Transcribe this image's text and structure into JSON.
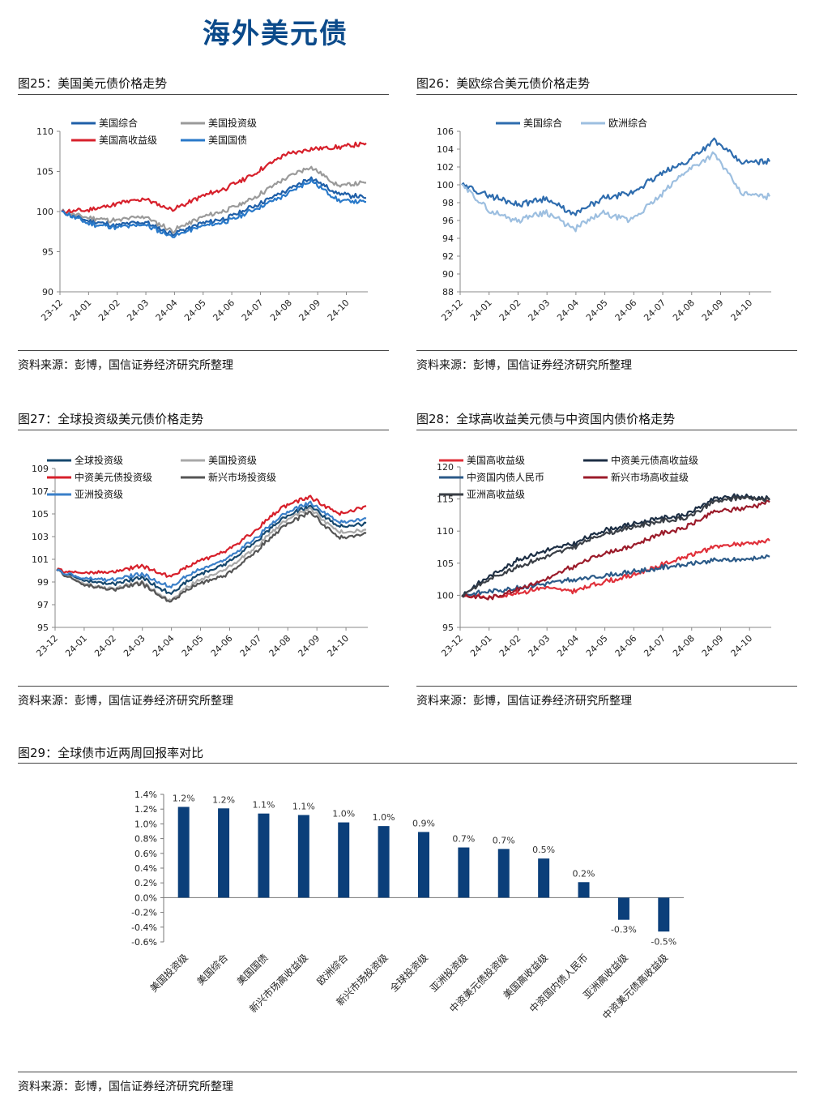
{
  "page_title": "海外美元债",
  "figures": [
    {
      "title": "图25：美国美元债价格走势",
      "source": "资料来源：彭博，国信证券经济研究所整理",
      "chart_data": {
        "type": "line",
        "ylim": [
          90,
          110
        ],
        "yticks": [
          90,
          95,
          100,
          105,
          110
        ],
        "xticks": [
          "23-12",
          "24-01",
          "24-02",
          "24-03",
          "24-04",
          "24-05",
          "24-06",
          "24-07",
          "24-08",
          "24-09",
          "24-10"
        ],
        "series": [
          {
            "name": "美国综合",
            "color": "#1f5fa8",
            "values": [
              100,
              98.8,
              98.3,
              98.7,
              97.2,
              98.5,
              99.2,
              100.8,
              102.4,
              104.2,
              102.2,
              101.7
            ]
          },
          {
            "name": "美国投资级",
            "color": "#9a9a9a",
            "values": [
              100,
              99.2,
              98.9,
              99.4,
              97.6,
              99.2,
              100.2,
              101.8,
              104.0,
              105.6,
              103.2,
              103.6
            ]
          },
          {
            "name": "美国高收益级",
            "color": "#d7202b",
            "values": [
              100,
              100.2,
              101.0,
              101.6,
              100.2,
              101.8,
              103.0,
              104.8,
              107.0,
              107.8,
              108.0,
              108.5
            ]
          },
          {
            "name": "美国国债",
            "color": "#2979c9",
            "values": [
              100,
              98.5,
              98.0,
              98.4,
              96.9,
              98.1,
              98.8,
              100.3,
              101.9,
              103.9,
              101.4,
              101.2
            ]
          }
        ]
      }
    },
    {
      "title": "图26：美欧综合美元债价格走势",
      "source": "资料来源：彭博，国信证券经济研究所整理",
      "chart_data": {
        "type": "line",
        "ylim": [
          88,
          106
        ],
        "yticks": [
          88,
          90,
          92,
          94,
          96,
          98,
          100,
          102,
          104,
          106
        ],
        "xticks": [
          "23-12",
          "24-01",
          "24-02",
          "24-03",
          "24-04",
          "24-05",
          "24-06",
          "24-07",
          "24-08",
          "24-09",
          "24-10"
        ],
        "series": [
          {
            "name": "美国综合",
            "color": "#2e6cae",
            "values": [
              100,
              98.8,
              97.8,
              98.5,
              96.6,
              98.4,
              99.0,
              101.0,
              102.5,
              105.0,
              102.5,
              102.6
            ]
          },
          {
            "name": "欧洲综合",
            "color": "#9dbfe0",
            "values": [
              100,
              97.0,
              96.0,
              97.0,
              95.0,
              96.8,
              96.0,
              98.5,
              101.5,
              103.5,
              99.0,
              98.7
            ]
          }
        ]
      }
    },
    {
      "title": "图27：全球投资级美元债价格走势",
      "source": "资料来源：彭博，国信证券经济研究所整理",
      "chart_data": {
        "type": "line",
        "ylim": [
          95,
          109
        ],
        "yticks": [
          95,
          97,
          99,
          101,
          103,
          105,
          107,
          109
        ],
        "xticks": [
          "23-12",
          "24-01",
          "24-02",
          "24-03",
          "24-04",
          "24-05",
          "24-06",
          "24-07",
          "24-08",
          "24-09",
          "24-10"
        ],
        "series": [
          {
            "name": "全球投资级",
            "color": "#16486e",
            "values": [
              100,
              99.1,
              98.8,
              99.4,
              98.0,
              99.6,
              100.6,
              102.4,
              104.6,
              105.7,
              103.9,
              104.2
            ]
          },
          {
            "name": "美国投资级",
            "color": "#a8a8a8",
            "values": [
              100,
              98.8,
              98.4,
              99.0,
              97.4,
              99.1,
              100.1,
              101.9,
              104.2,
              105.5,
              103.4,
              103.6
            ]
          },
          {
            "name": "中资美元债投资级",
            "color": "#d7202b",
            "values": [
              100,
              99.8,
              99.9,
              100.4,
              99.5,
              100.8,
              101.7,
              103.4,
              105.6,
              106.5,
              105.0,
              105.7
            ]
          },
          {
            "name": "新兴市场投资级",
            "color": "#555555",
            "values": [
              100,
              98.7,
              98.3,
              98.9,
              97.3,
              98.8,
              99.6,
              101.5,
              103.8,
              105.2,
              102.9,
              103.3
            ]
          },
          {
            "name": "亚洲投资级",
            "color": "#3a7fc8",
            "values": [
              100,
              99.3,
              99.2,
              99.7,
              98.6,
              100.0,
              101.0,
              102.7,
              104.9,
              106.0,
              104.3,
              104.6
            ]
          }
        ]
      }
    },
    {
      "title": "图28：全球高收益美元债与中资国内债价格走势",
      "source": "资料来源：彭博，国信证券经济研究所整理",
      "chart_data": {
        "type": "line",
        "ylim": [
          95,
          120
        ],
        "yticks": [
          95,
          100,
          105,
          110,
          115,
          120
        ],
        "xticks": [
          "23-12",
          "24-01",
          "24-02",
          "24-03",
          "24-04",
          "24-05",
          "24-06",
          "24-07",
          "24-08",
          "24-09",
          "24-10"
        ],
        "series": [
          {
            "name": "美国高收益级",
            "color": "#e0303a",
            "values": [
              100,
              99.6,
              100.4,
              101.2,
              100.6,
              102.0,
              103.0,
              104.5,
              106.0,
              107.5,
              108.0,
              108.5
            ]
          },
          {
            "name": "中资美元债高收益级",
            "color": "#1c2e44",
            "values": [
              100,
              103.0,
              105.5,
              107.0,
              108.0,
              110.0,
              111.0,
              112.0,
              112.5,
              115.0,
              115.5,
              115.0
            ]
          },
          {
            "name": "中资国内债人民币",
            "color": "#2b5a88",
            "values": [
              100,
              100.6,
              101.2,
              101.8,
              102.4,
              103.0,
              103.6,
              104.2,
              104.8,
              105.4,
              105.6,
              106.0
            ]
          },
          {
            "name": "新兴市场高收益级",
            "color": "#9b1b2a",
            "values": [
              100,
              99.5,
              101.0,
              102.5,
              104.5,
              106.5,
              107.5,
              109.5,
              110.5,
              113.0,
              113.5,
              114.5
            ]
          },
          {
            "name": "亚洲高收益级",
            "color": "#3a3f46",
            "values": [
              100,
              102.5,
              104.5,
              106.0,
              107.5,
              109.5,
              110.5,
              111.5,
              112.0,
              114.5,
              115.3,
              114.8
            ]
          }
        ]
      }
    },
    {
      "title": "图29：全球债市近两周回报率对比",
      "source": "资料来源：彭博，国信证券经济研究所整理",
      "chart_data": {
        "type": "bar",
        "color": "#0b3f7a",
        "ylim": [
          -0.6,
          1.4
        ],
        "yticks": [
          "-0.6%",
          "-0.4%",
          "-0.2%",
          "0.0%",
          "0.2%",
          "0.4%",
          "0.6%",
          "0.8%",
          "1.0%",
          "1.2%",
          "1.4%"
        ],
        "categories": [
          "美国投资级",
          "美国综合",
          "美国国债",
          "新兴市场高收益级",
          "欧洲综合",
          "新兴市场投资级",
          "全球投资级",
          "亚洲投资级",
          "中资美元债投资级",
          "美国高收益级",
          "中资国内债人民币",
          "亚洲高收益级",
          "中资美元债高收益级"
        ],
        "values": [
          1.23,
          1.21,
          1.14,
          1.12,
          1.02,
          0.97,
          0.89,
          0.68,
          0.66,
          0.53,
          0.21,
          -0.3,
          -0.46
        ],
        "labels": [
          "1.2%",
          "1.2%",
          "1.1%",
          "1.1%",
          "1.0%",
          "1.0%",
          "0.9%",
          "0.7%",
          "0.7%",
          "0.5%",
          "0.2%",
          "-0.3%",
          "-0.5%"
        ]
      }
    }
  ]
}
